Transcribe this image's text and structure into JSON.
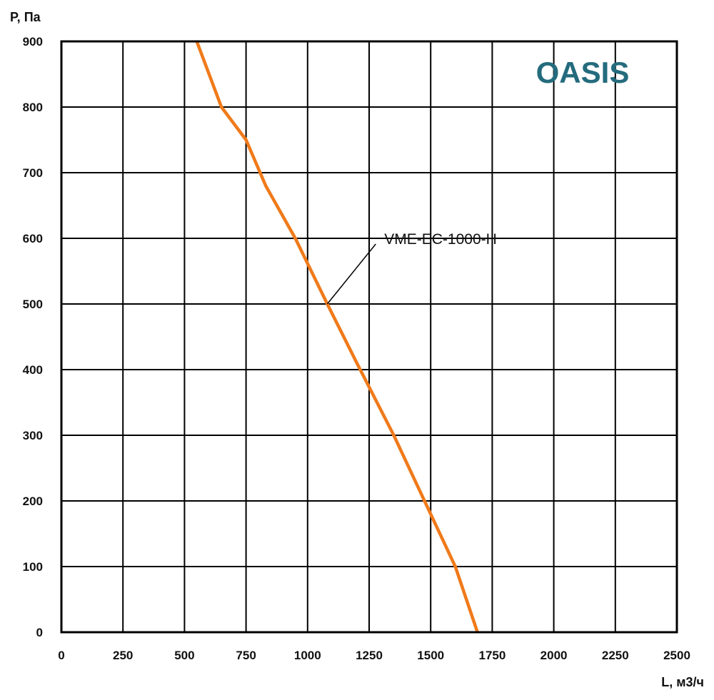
{
  "chart_data": {
    "type": "line",
    "title": "",
    "xlabel": "L, м3/ч",
    "ylabel": "P, Па",
    "xlim": [
      0,
      2500
    ],
    "ylim": [
      0,
      900
    ],
    "x_ticks": [
      0,
      250,
      500,
      750,
      1000,
      1250,
      1500,
      1750,
      2000,
      2250,
      2500
    ],
    "y_ticks": [
      0,
      100,
      200,
      300,
      400,
      500,
      600,
      700,
      800,
      900
    ],
    "grid": true,
    "legend": "none",
    "series": [
      {
        "name": "VME-EC-1000-H",
        "color": "#f07a1a",
        "points": [
          [
            550,
            900
          ],
          [
            650,
            800
          ],
          [
            750,
            750
          ],
          [
            830,
            680
          ],
          [
            950,
            600
          ],
          [
            1080,
            500
          ],
          [
            1200,
            410
          ],
          [
            1350,
            300
          ],
          [
            1500,
            180
          ],
          [
            1600,
            100
          ],
          [
            1690,
            0
          ]
        ]
      }
    ],
    "annotations": [
      {
        "text": "VME-EC-1000-H",
        "pointer_to": [
          1080,
          500
        ],
        "text_at": [
          1300,
          600
        ]
      }
    ]
  },
  "logo": {
    "text": "OASIS",
    "color": "#246b7d"
  }
}
